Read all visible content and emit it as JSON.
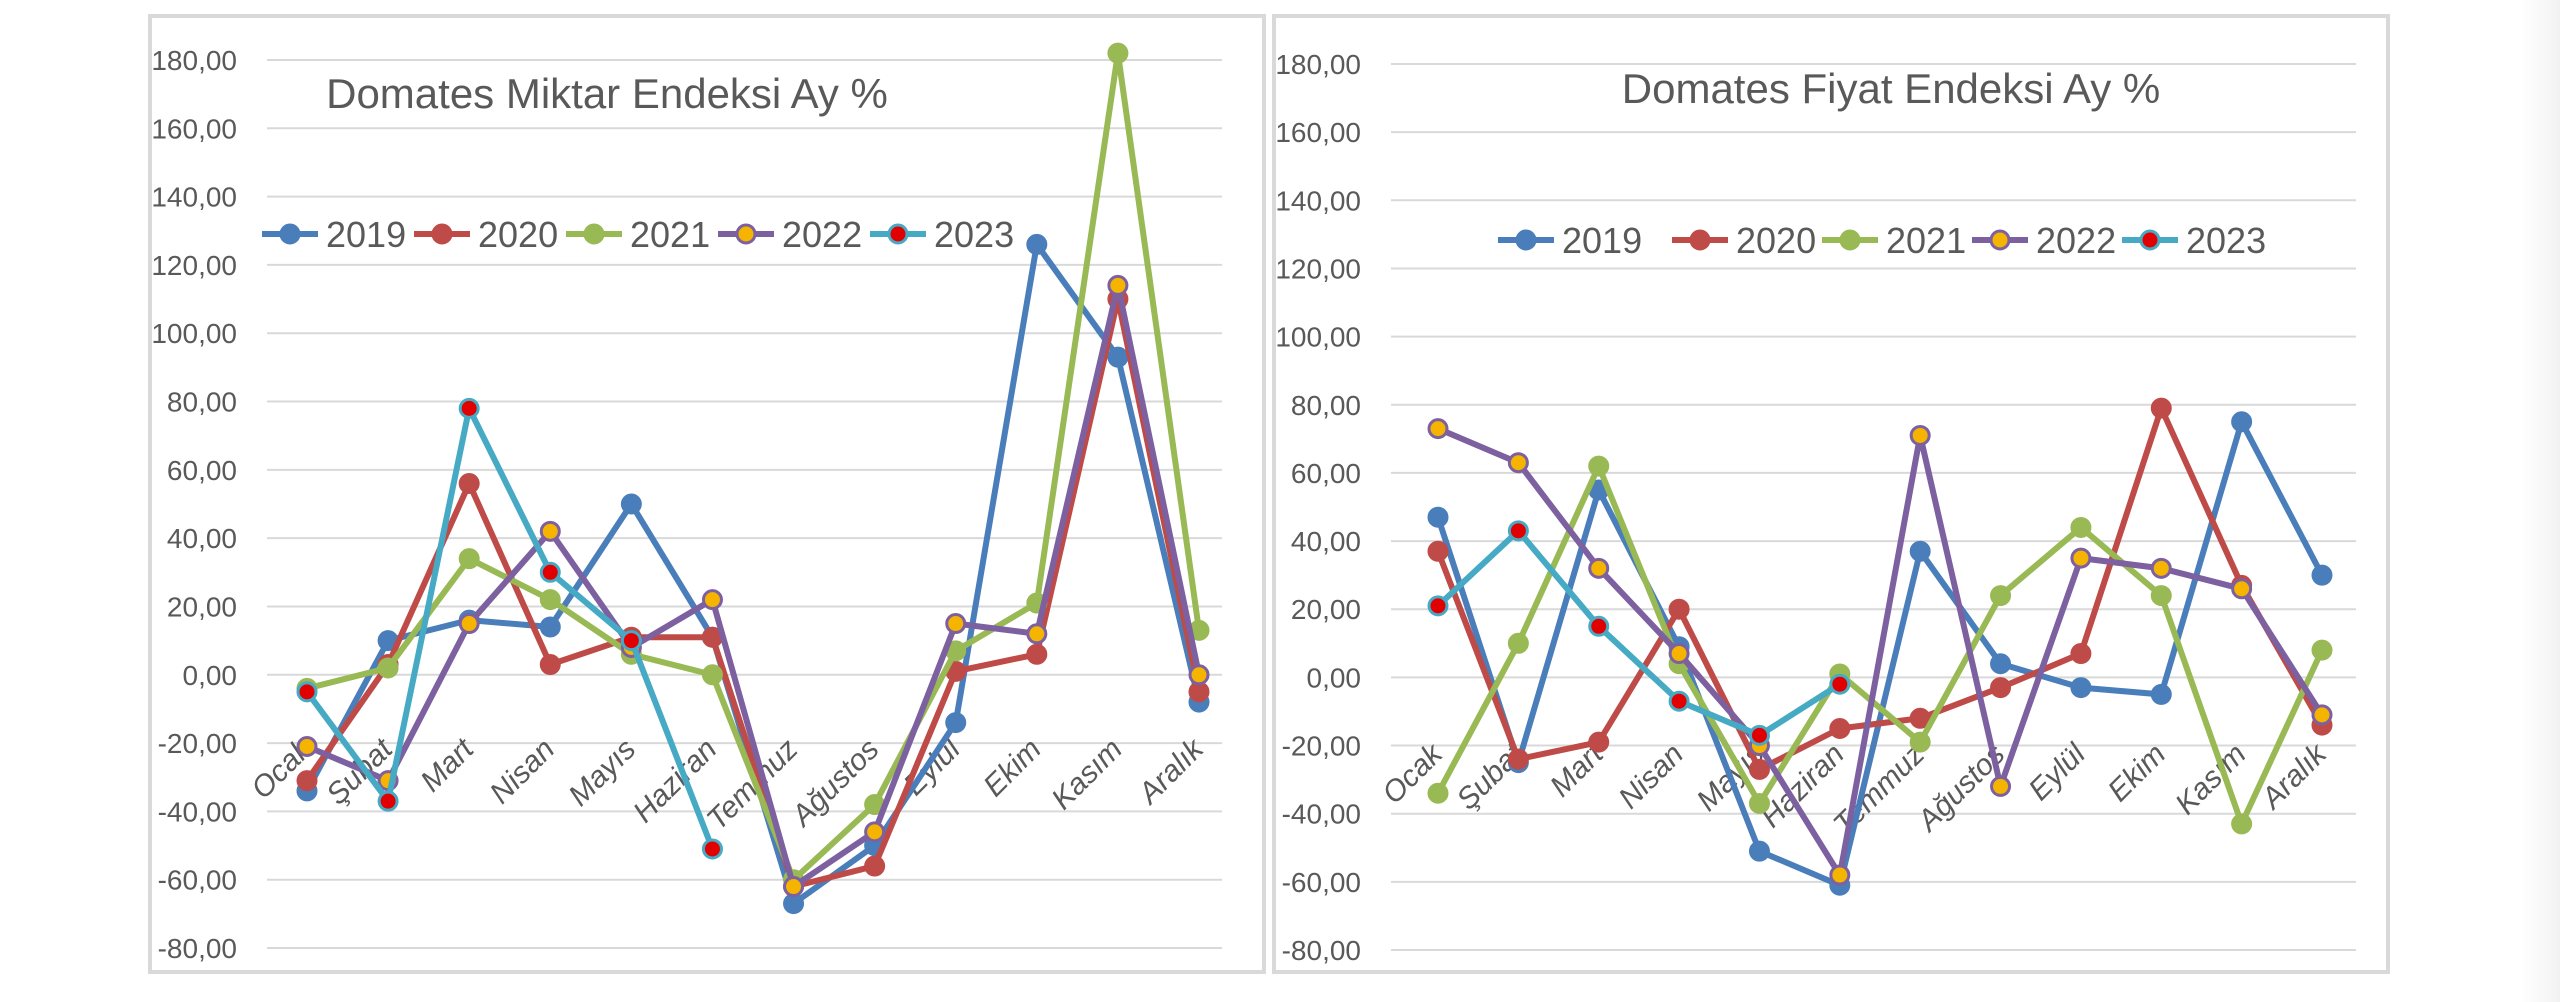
{
  "months": [
    "Ocak",
    "Şubat",
    "Mart",
    "Nisan",
    "Mayıs",
    "Haziran",
    "Temmuz",
    "Ağustos",
    "Eylül",
    "Ekim",
    "Kasım",
    "Aralık"
  ],
  "y_ticks": [
    "180,00",
    "160,00",
    "140,00",
    "120,00",
    "100,00",
    "80,00",
    "60,00",
    "40,00",
    "20,00",
    "0,00",
    "-20,00",
    "-40,00",
    "-60,00",
    "-80,00"
  ],
  "legend": [
    "2019",
    "2020",
    "2021",
    "2022",
    "2023"
  ],
  "colors": {
    "s2019": "#4a7ebb",
    "s2020": "#be4b48",
    "s2021": "#98b954",
    "s2022": "#7d60a0",
    "s2023": "#46aac5",
    "marker2022": "#f4b400",
    "marker2023": "#e00000",
    "grid": "#d9d9d9",
    "text": "#595959"
  },
  "chart_data": [
    {
      "type": "line",
      "title": "Domates Miktar Endeksi Ay  %",
      "legend_position": "top",
      "ylim": [
        -80,
        180
      ],
      "categories": [
        "Ocak",
        "Şubat",
        "Mart",
        "Nisan",
        "Mayıs",
        "Haziran",
        "Temmuz",
        "Ağustos",
        "Eylül",
        "Ekim",
        "Kasım",
        "Aralık"
      ],
      "series": [
        {
          "name": "2019",
          "values": [
            -34,
            10,
            16,
            14,
            50,
            11,
            -67,
            -50,
            -14,
            126,
            93,
            -8
          ]
        },
        {
          "name": "2020",
          "values": [
            -31,
            3,
            56,
            3,
            11,
            11,
            -62,
            -56,
            1,
            6,
            110,
            -5
          ]
        },
        {
          "name": "2021",
          "values": [
            -4,
            2,
            34,
            22,
            6,
            0,
            -60,
            -38,
            7,
            21,
            182,
            13
          ]
        },
        {
          "name": "2022",
          "values": [
            -21,
            -31,
            15,
            42,
            8,
            22,
            -62,
            -46,
            15,
            12,
            114,
            0
          ]
        },
        {
          "name": "2023",
          "values": [
            -5,
            -37,
            78,
            30,
            10,
            -51,
            null,
            null,
            null,
            null,
            null,
            null
          ]
        }
      ]
    },
    {
      "type": "line",
      "title": "Domates Fiyat Endeksi Ay %",
      "legend_position": "top",
      "ylim": [
        -80,
        180
      ],
      "categories": [
        "Ocak",
        "Şubat",
        "Mart",
        "Nisan",
        "Mayıs",
        "Haziran",
        "Temmuz",
        "Ağustos",
        "Eylül",
        "Ekim",
        "Kasım",
        "Aralık"
      ],
      "series": [
        {
          "name": "2019",
          "values": [
            47,
            -25,
            55,
            9,
            -51,
            -61,
            37,
            4,
            -3,
            -5,
            75,
            30
          ]
        },
        {
          "name": "2020",
          "values": [
            37,
            -24,
            -19,
            20,
            -27,
            -15,
            -12,
            -3,
            7,
            79,
            27,
            -14
          ]
        },
        {
          "name": "2021",
          "values": [
            -34,
            10,
            62,
            4,
            -37,
            1,
            -19,
            24,
            44,
            24,
            -43,
            8
          ]
        },
        {
          "name": "2022",
          "values": [
            73,
            63,
            32,
            7,
            -20,
            -58,
            71,
            -32,
            35,
            32,
            26,
            -11
          ]
        },
        {
          "name": "2023",
          "values": [
            21,
            43,
            15,
            -7,
            -17,
            -2,
            null,
            null,
            null,
            null,
            null,
            null
          ]
        }
      ]
    }
  ]
}
